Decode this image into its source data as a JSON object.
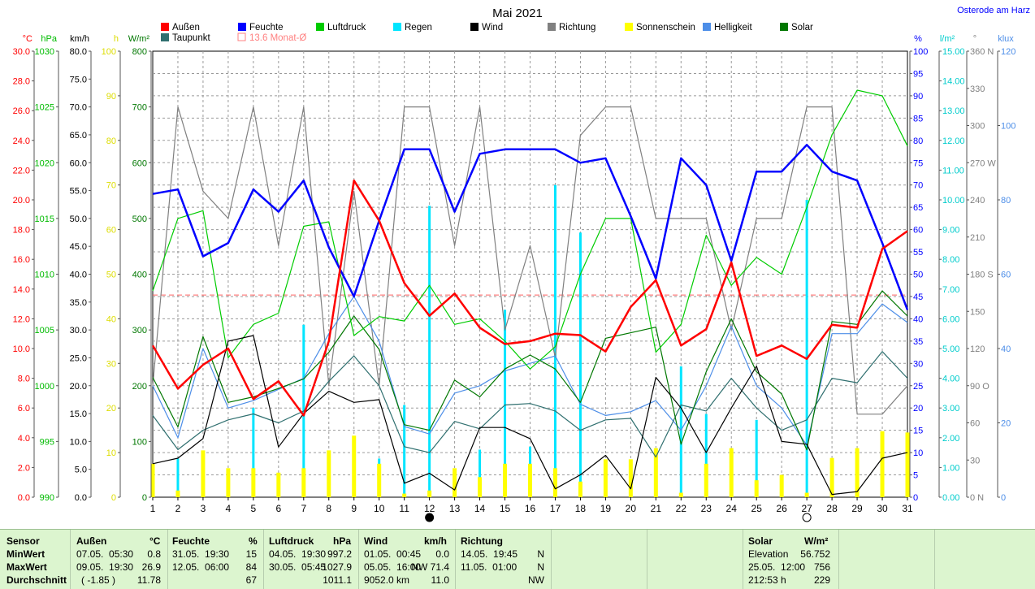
{
  "chart_data": {
    "type": "line",
    "title": "Mai 2021",
    "location": "Osterode am Harz",
    "x": [
      1,
      2,
      3,
      4,
      5,
      6,
      7,
      8,
      9,
      10,
      11,
      12,
      13,
      14,
      15,
      16,
      17,
      18,
      19,
      20,
      21,
      22,
      23,
      24,
      25,
      26,
      27,
      28,
      29,
      30,
      31
    ],
    "x_ticks": [
      "1",
      "2",
      "3",
      "4",
      "5",
      "6",
      "7",
      "8",
      "9",
      "10",
      "11",
      "12",
      "13",
      "14",
      "15",
      "16",
      "17",
      "18",
      "19",
      "20",
      "21",
      "22",
      "23",
      "24",
      "25",
      "26",
      "27",
      "28",
      "29",
      "30",
      "31"
    ],
    "legend": [
      {
        "name": "Außen",
        "color": "#ff0000"
      },
      {
        "name": "Feuchte",
        "color": "#0000ff"
      },
      {
        "name": "Luftdruck",
        "color": "#00cc00"
      },
      {
        "name": "Regen",
        "color": "#00e5ff"
      },
      {
        "name": "Wind",
        "color": "#000000"
      },
      {
        "name": "Richtung",
        "color": "#808080"
      },
      {
        "name": "Sonnenschein",
        "color": "#ffff00"
      },
      {
        "name": "Helligkeit",
        "color": "#4d8ee8"
      },
      {
        "name": "Solar",
        "color": "#007700"
      },
      {
        "name": "Taupunkt",
        "color": "#2f6f6f"
      },
      {
        "name": "13.6 Monat-Ø",
        "color": "#ff8080"
      }
    ],
    "monthly_mean_temp": 13.6,
    "axes_left": [
      {
        "unit": "°C",
        "color": "#ff0000",
        "ticks": [
          "30.0",
          "28.0",
          "26.0",
          "24.0",
          "22.0",
          "20.0",
          "18.0",
          "16.0",
          "14.0",
          "12.0",
          "10.0",
          "8.0",
          "6.0",
          "4.0",
          "2.0",
          "0.0"
        ]
      },
      {
        "unit": "hPa",
        "color": "#00bb00",
        "ticks": [
          "1030",
          "1025",
          "1020",
          "1015",
          "1010",
          "1005",
          "1000",
          "995",
          "990"
        ]
      },
      {
        "unit": "km/h",
        "color": "#000000",
        "ticks": [
          "80.0",
          "75.0",
          "70.0",
          "65.0",
          "60.0",
          "55.0",
          "50.0",
          "45.0",
          "40.0",
          "35.0",
          "30.0",
          "25.0",
          "20.0",
          "15.0",
          "10.0",
          "5.0",
          "0.0"
        ]
      },
      {
        "unit": "h",
        "color": "#dddd00",
        "ticks": [
          "100",
          "90",
          "80",
          "70",
          "60",
          "50",
          "40",
          "30",
          "20",
          "10",
          "0"
        ]
      },
      {
        "unit": "W/m²",
        "color": "#007700",
        "ticks": [
          "800",
          "700",
          "600",
          "500",
          "400",
          "300",
          "200",
          "100",
          "0"
        ]
      }
    ],
    "axes_right": [
      {
        "unit": "%",
        "color": "#0000ff",
        "ticks": [
          "100",
          "95",
          "90",
          "85",
          "80",
          "75",
          "70",
          "65",
          "60",
          "55",
          "50",
          "45",
          "40",
          "35",
          "30",
          "25",
          "20",
          "15",
          "10",
          "5",
          "0"
        ]
      },
      {
        "unit": "l/m²",
        "color": "#00cccc",
        "ticks": [
          "15.00",
          "14.00",
          "13.00",
          "12.00",
          "11.00",
          "10.00",
          "9.00",
          "8.00",
          "7.00",
          "6.00",
          "5.00",
          "4.00",
          "3.00",
          "2.00",
          "1.00",
          "0.00"
        ]
      },
      {
        "unit": "°",
        "color": "#808080",
        "ticks": [
          "360 N",
          "330",
          "300",
          "270 W",
          "240",
          "210",
          "180 S",
          "150",
          "120",
          "90 O",
          "60",
          "30",
          "0 N"
        ]
      },
      {
        "unit": "klux",
        "color": "#4d8ee8",
        "ticks": [
          "120",
          "100",
          "80",
          "60",
          "40",
          "20",
          "0"
        ]
      }
    ],
    "ylim_temp": [
      0,
      30
    ],
    "ylim_humidity": [
      0,
      100
    ],
    "ylim_pressure": [
      990,
      1030
    ],
    "ylim_wind": [
      0,
      80
    ],
    "ylim_rain": [
      0,
      15
    ],
    "ylim_direction": [
      0,
      360
    ],
    "ylim_sunshine": [
      0,
      100
    ],
    "ylim_solar": [
      0,
      800
    ],
    "ylim_lux": [
      0,
      120
    ],
    "series": [
      {
        "name": "Außen",
        "axis": "temp",
        "values": [
          10.2,
          7.3,
          8.9,
          10.0,
          6.6,
          7.8,
          5.5,
          10.5,
          21.3,
          18.6,
          14.4,
          12.2,
          13.7,
          11.4,
          10.3,
          10.5,
          11.0,
          10.9,
          9.8,
          12.8,
          14.6,
          10.2,
          11.3,
          15.8,
          9.5,
          10.2,
          9.3,
          11.6,
          11.4,
          16.7,
          17.9
        ]
      },
      {
        "name": "Feuchte",
        "axis": "humidity",
        "values": [
          68,
          69,
          54,
          57,
          69,
          64,
          71,
          56,
          45,
          62,
          78,
          78,
          64,
          77,
          78,
          78,
          78,
          75,
          76,
          63,
          49,
          76,
          70,
          53,
          73,
          73,
          79,
          73,
          71,
          57,
          42
        ]
      },
      {
        "name": "Luftdruck",
        "axis": "pressure",
        "values": [
          1008.5,
          1015.0,
          1015.7,
          1002.5,
          1005.5,
          1006.5,
          1014.3,
          1014.7,
          1004.5,
          1006.2,
          1005.8,
          1009.0,
          1005.5,
          1006.0,
          1004.0,
          1001.5,
          1003.5,
          1010.0,
          1015.0,
          1015.0,
          1003.0,
          1005.5,
          1013.5,
          1009.0,
          1011.5,
          1010.0,
          1016.0,
          1022.5,
          1026.5,
          1026.0,
          1021.5
        ]
      },
      {
        "name": "Taupunkt",
        "axis": "temp",
        "values": [
          5.5,
          3.2,
          4.5,
          5.2,
          5.6,
          5.0,
          5.8,
          7.8,
          9.5,
          7.5,
          3.4,
          3.0,
          5.1,
          4.6,
          6.2,
          6.3,
          5.8,
          4.5,
          5.2,
          5.3,
          2.7,
          6.2,
          5.8,
          8.0,
          6.0,
          4.5,
          5.2,
          8.0,
          7.7,
          9.8,
          8.0
        ]
      },
      {
        "name": "Wind",
        "axis": "wind",
        "values": [
          6.0,
          7.0,
          10.5,
          28.0,
          29.0,
          9.0,
          15.0,
          19.0,
          17.0,
          17.5,
          2.5,
          4.3,
          1.3,
          12.5,
          12.5,
          10.5,
          1.5,
          4.0,
          7.5,
          1.5,
          21.5,
          16.0,
          8.0,
          16.0,
          23.5,
          10.0,
          9.5,
          0.5,
          1.0,
          7.0,
          8.0
        ]
      },
      {
        "name": "Richtung",
        "axis": "direction",
        "values": [
          90,
          315,
          247,
          225,
          315,
          203,
          315,
          90,
          247,
          90,
          315,
          315,
          203,
          315,
          135,
          203,
          113,
          292,
          315,
          315,
          225,
          225,
          225,
          135,
          225,
          225,
          315,
          315,
          67,
          67,
          90
        ]
      },
      {
        "name": "Helligkeit",
        "axis": "lux",
        "values": [
          30,
          16,
          40,
          24,
          26,
          29,
          32,
          44,
          54,
          42,
          19,
          17,
          28,
          30,
          34,
          36,
          38,
          25,
          22,
          23,
          26,
          18,
          30,
          46,
          30,
          24,
          14,
          44,
          44,
          52,
          47
        ]
      },
      {
        "name": "Solar",
        "axis": "solar",
        "values": [
          215,
          126,
          288,
          170,
          180,
          195,
          212,
          260,
          325,
          265,
          130,
          120,
          210,
          180,
          230,
          255,
          230,
          170,
          285,
          295,
          305,
          95,
          225,
          320,
          225,
          185,
          85,
          315,
          310,
          370,
          325
        ]
      },
      {
        "name": "Regen",
        "axis": "rain",
        "type": "bar",
        "values": [
          0.0,
          1.3,
          0.0,
          0.4,
          3.0,
          0.8,
          5.8,
          0.0,
          0.0,
          1.3,
          3.1,
          9.8,
          0.0,
          1.6,
          6.3,
          1.7,
          10.5,
          8.9,
          1.2,
          0.0,
          0.0,
          4.4,
          2.8,
          0.0,
          2.6,
          0.3,
          10.0,
          0.8,
          0.0,
          0.0,
          0.0
        ]
      },
      {
        "name": "Sonnenschein",
        "axis": "sunshine",
        "type": "bar",
        "values": [
          7.5,
          1.5,
          10.5,
          6.5,
          6.5,
          5.5,
          6.5,
          10.5,
          13.8,
          7.5,
          0.8,
          1.5,
          6.5,
          4.5,
          7.5,
          7.5,
          6.5,
          3.5,
          8.5,
          8.5,
          11.0,
          1.0,
          7.5,
          11.0,
          3.8,
          5.0,
          1.0,
          8.8,
          11.0,
          14.8,
          14.5
        ]
      }
    ],
    "moon_phases": [
      {
        "day": 12,
        "phase": "new"
      },
      {
        "day": 27,
        "phase": "full"
      }
    ]
  },
  "summary_table": {
    "sensor_header": "Sensor",
    "row_labels": [
      "MinWert",
      "MaxWert",
      "Durchschnitt"
    ],
    "groups": [
      {
        "title": "Außen",
        "unit": "°C",
        "rows": [
          [
            "07.05.  05:30",
            "0.8"
          ],
          [
            "09.05.  19:30",
            "26.9"
          ],
          [
            "( -1.85 )",
            "11.78"
          ]
        ]
      },
      {
        "title": "Feuchte",
        "unit": "%",
        "rows": [
          [
            "31.05.  19:30",
            "15"
          ],
          [
            "12.05.  06:00",
            "84"
          ],
          [
            "",
            "67"
          ]
        ]
      },
      {
        "title": "Luftdruck",
        "unit": "hPa",
        "rows": [
          [
            "04.05.  19:30",
            "997.2"
          ],
          [
            "30.05.  05:45",
            "1027.9"
          ],
          [
            "",
            "1011.1"
          ]
        ]
      },
      {
        "title": "Wind",
        "unit": "km/h",
        "rows": [
          [
            "01.05.  00:45",
            "0.0"
          ],
          [
            "05.05.  16:00",
            "NW 71.4"
          ],
          [
            "9052.0 km",
            "11.0"
          ]
        ]
      },
      {
        "title": "Richtung",
        "unit": "",
        "rows": [
          [
            "14.05.  19:45",
            "N"
          ],
          [
            "11.05.  01:00",
            "N"
          ],
          [
            "",
            "NW"
          ]
        ]
      },
      {
        "title": "Solar",
        "unit": "W/m²",
        "rows": [
          [
            "Elevation",
            "56.752"
          ],
          [
            "25.05.  12:00",
            "756"
          ],
          [
            "212:53 h",
            "229"
          ]
        ]
      }
    ]
  }
}
